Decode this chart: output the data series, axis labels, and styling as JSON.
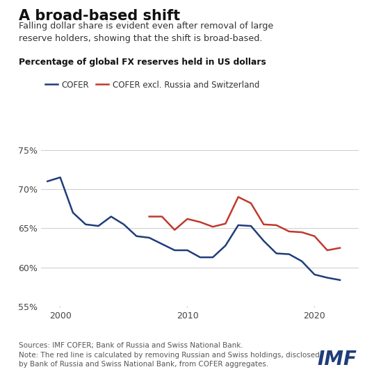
{
  "title": "A broad-based shift",
  "subtitle": "Falling dollar share is evident even after removal of large\nreserve holders, showing that the shift is broad-based.",
  "chart_label": "Percentage of global FX reserves held in US dollars",
  "legend_blue": "COFER",
  "legend_red": "COFER excl. Russia and Switzerland",
  "blue_color": "#1f3d7a",
  "red_color": "#c0392b",
  "blue_x": [
    1999,
    2000,
    2001,
    2002,
    2003,
    2004,
    2005,
    2006,
    2007,
    2008,
    2009,
    2010,
    2011,
    2012,
    2013,
    2014,
    2015,
    2016,
    2017,
    2018,
    2019,
    2020,
    2021,
    2022
  ],
  "blue_y": [
    71.0,
    71.5,
    67.0,
    65.5,
    65.3,
    66.5,
    65.5,
    64.0,
    63.8,
    63.0,
    62.2,
    62.2,
    61.3,
    61.3,
    62.8,
    65.4,
    65.3,
    63.4,
    61.8,
    61.7,
    60.8,
    59.1,
    58.7,
    58.4
  ],
  "red_x": [
    2007,
    2008,
    2009,
    2010,
    2011,
    2012,
    2013,
    2014,
    2015,
    2016,
    2017,
    2018,
    2019,
    2020,
    2021,
    2022
  ],
  "red_y": [
    66.5,
    66.5,
    64.8,
    66.2,
    65.8,
    65.2,
    65.6,
    69.0,
    68.2,
    65.5,
    65.4,
    64.6,
    64.5,
    64.0,
    62.2,
    62.5
  ],
  "ylim": [
    55,
    76
  ],
  "yticks": [
    55,
    60,
    65,
    70,
    75
  ],
  "xlim": [
    1998.5,
    2023.5
  ],
  "xticks": [
    2000,
    2010,
    2020
  ],
  "source_text": "Sources: IMF COFER; Bank of Russia and Swiss National Bank.\nNote: The red line is calculated by removing Russian and Swiss holdings, disclosed\nby Bank of Russia and Swiss National Bank, from COFER aggregates.",
  "imf_text": "IMF",
  "imf_color": "#1f3d7a",
  "background_color": "#ffffff",
  "grid_color": "#cccccc"
}
